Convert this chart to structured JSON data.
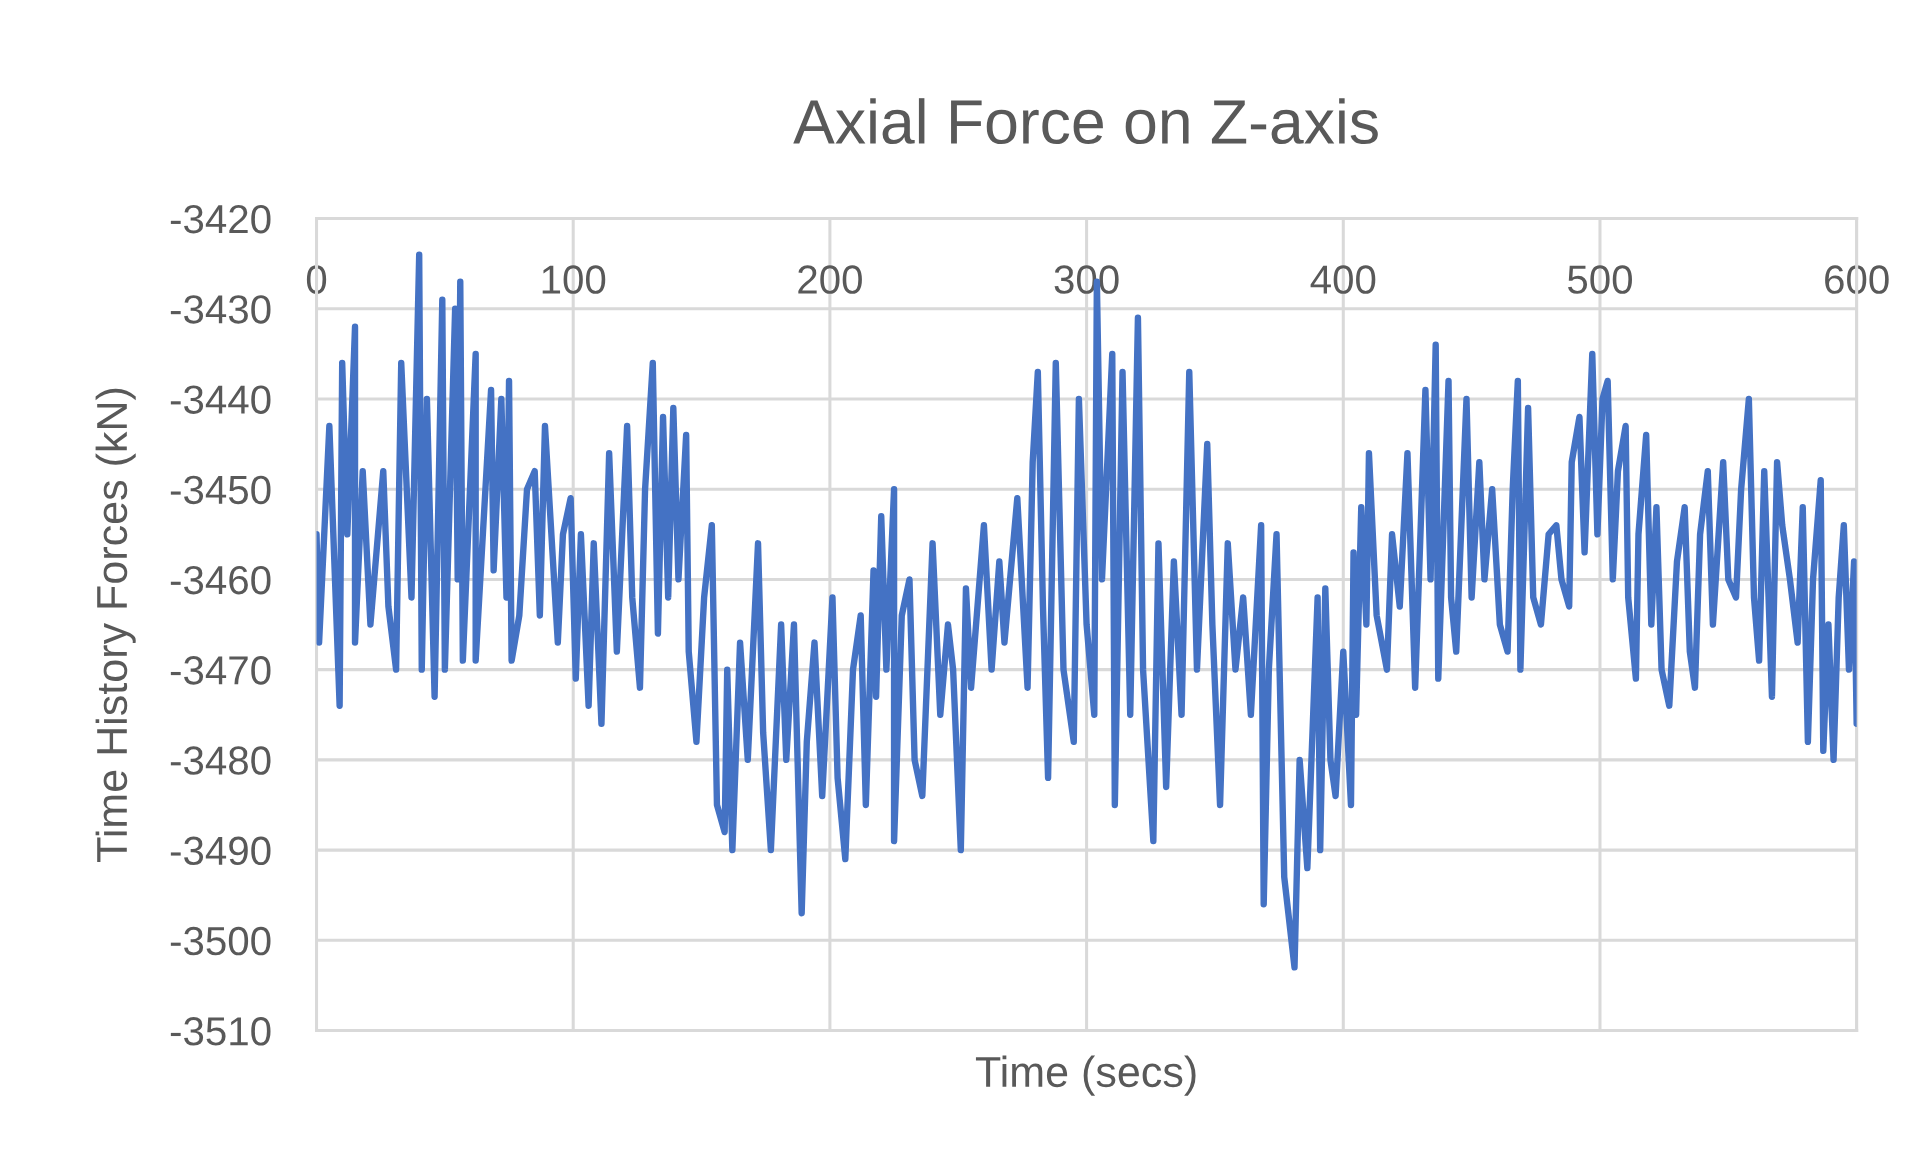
{
  "chart_data": {
    "type": "line",
    "title": "Axial Force on Z-axis",
    "xlabel": "Time (secs)",
    "ylabel": "Time History Forces (kN)",
    "x": [
      0,
      1,
      5,
      9,
      10,
      12,
      15,
      15,
      18,
      21,
      26,
      28,
      31,
      33,
      37,
      40,
      41,
      43,
      46,
      49,
      50,
      54,
      55,
      56,
      57,
      62,
      62,
      68,
      69,
      72,
      74,
      75,
      76,
      79,
      82,
      85,
      87,
      89,
      94,
      96,
      99,
      101,
      103,
      106,
      108,
      111,
      114,
      117,
      121,
      123,
      126,
      128,
      131,
      133,
      135,
      137,
      139,
      141,
      144,
      145,
      148,
      151,
      154,
      156,
      159,
      160,
      162,
      165,
      168,
      172,
      174,
      177,
      181,
      183,
      186,
      189,
      191,
      194,
      197,
      201,
      203,
      206,
      209,
      212,
      214,
      217,
      218,
      220,
      222,
      225,
      225,
      228,
      231,
      233,
      236,
      240,
      243,
      246,
      248,
      251,
      253,
      255,
      260,
      263,
      266,
      268,
      273,
      277,
      279,
      281,
      283,
      285,
      288,
      291,
      295,
      297,
      300,
      303,
      304,
      306,
      310,
      311,
      314,
      317,
      320,
      322,
      326,
      328,
      331,
      334,
      337,
      340,
      343,
      347,
      349,
      352,
      355,
      358,
      361,
      364,
      368,
      369,
      371,
      374,
      377,
      381,
      383,
      386,
      390,
      391,
      393,
      395,
      397,
      400,
      403,
      404,
      405,
      407,
      409,
      410,
      413,
      417,
      419,
      422,
      425,
      428,
      432,
      434,
      436,
      437,
      441,
      442,
      444,
      448,
      450,
      453,
      455,
      458,
      461,
      464,
      466,
      468,
      469,
      472,
      474,
      477,
      480,
      483,
      485,
      488,
      489,
      492,
      494,
      497,
      499,
      501,
      503,
      505,
      507,
      510,
      511,
      514,
      515,
      518,
      520,
      522,
      524,
      527,
      530,
      533,
      535,
      537,
      539,
      542,
      544,
      548,
      550,
      553,
      555,
      558,
      560,
      562,
      564,
      567,
      569,
      571,
      574,
      577,
      579,
      581,
      583,
      586,
      587,
      589,
      591,
      593,
      595,
      597,
      599,
      600
    ],
    "series": [
      {
        "color": "#4472c4",
        "values": [
          -3455,
          -3467,
          -3443,
          -3474,
          -3436,
          -3455,
          -3432,
          -3467,
          -3448,
          -3465,
          -3448,
          -3463,
          -3470,
          -3436,
          -3462,
          -3424,
          -3470,
          -3440,
          -3473,
          -3429,
          -3470,
          -3430,
          -3460,
          -3427,
          -3469,
          -3435,
          -3469,
          -3439,
          -3459,
          -3440,
          -3462,
          -3438,
          -3469,
          -3464,
          -3450,
          -3448,
          -3464,
          -3443,
          -3467,
          -3455,
          -3451,
          -3471,
          -3455,
          -3474,
          -3456,
          -3476,
          -3446,
          -3468,
          -3443,
          -3462,
          -3472,
          -3450,
          -3436,
          -3466,
          -3442,
          -3462,
          -3441,
          -3460,
          -3444,
          -3468,
          -3478,
          -3462,
          -3454,
          -3485,
          -3488,
          -3470,
          -3490,
          -3467,
          -3480,
          -3456,
          -3477,
          -3490,
          -3465,
          -3480,
          -3465,
          -3497,
          -3478,
          -3467,
          -3484,
          -3462,
          -3482,
          -3491,
          -3470,
          -3464,
          -3485,
          -3459,
          -3473,
          -3453,
          -3470,
          -3450,
          -3489,
          -3464,
          -3460,
          -3480,
          -3484,
          -3456,
          -3475,
          -3465,
          -3470,
          -3490,
          -3461,
          -3472,
          -3454,
          -3470,
          -3458,
          -3467,
          -3451,
          -3472,
          -3447,
          -3437,
          -3463,
          -3482,
          -3436,
          -3470,
          -3478,
          -3440,
          -3465,
          -3475,
          -3427,
          -3460,
          -3435,
          -3485,
          -3437,
          -3475,
          -3431,
          -3470,
          -3489,
          -3456,
          -3483,
          -3458,
          -3475,
          -3437,
          -3470,
          -3445,
          -3465,
          -3485,
          -3456,
          -3470,
          -3462,
          -3475,
          -3454,
          -3496,
          -3470,
          -3455,
          -3493,
          -3503,
          -3480,
          -3492,
          -3462,
          -3490,
          -3461,
          -3480,
          -3484,
          -3468,
          -3485,
          -3457,
          -3475,
          -3452,
          -3465,
          -3446,
          -3464,
          -3470,
          -3455,
          -3463,
          -3446,
          -3472,
          -3439,
          -3460,
          -3434,
          -3471,
          -3438,
          -3462,
          -3468,
          -3440,
          -3462,
          -3447,
          -3460,
          -3450,
          -3465,
          -3468,
          -3450,
          -3438,
          -3470,
          -3441,
          -3462,
          -3465,
          -3455,
          -3454,
          -3460,
          -3463,
          -3447,
          -3442,
          -3457,
          -3435,
          -3455,
          -3440,
          -3438,
          -3460,
          -3448,
          -3443,
          -3462,
          -3471,
          -3455,
          -3444,
          -3465,
          -3452,
          -3470,
          -3474,
          -3458,
          -3452,
          -3468,
          -3472,
          -3455,
          -3448,
          -3465,
          -3447,
          -3460,
          -3462,
          -3450,
          -3440,
          -3462,
          -3469,
          -3448,
          -3473,
          -3447,
          -3454,
          -3460,
          -3467,
          -3452,
          -3478,
          -3460,
          -3449,
          -3479,
          -3465,
          -3480,
          -3462,
          -3454,
          -3470,
          -3458,
          -3476
        ]
      }
    ],
    "xlim": [
      0,
      600
    ],
    "xticks": [
      0,
      100,
      200,
      300,
      400,
      500,
      600
    ],
    "ylim": [
      -3510,
      -3420
    ],
    "yticks": [
      -3510,
      -3500,
      -3490,
      -3480,
      -3470,
      -3460,
      -3450,
      -3440,
      -3430,
      -3420
    ],
    "grid": true,
    "marker": "none",
    "line_style": "solid"
  }
}
